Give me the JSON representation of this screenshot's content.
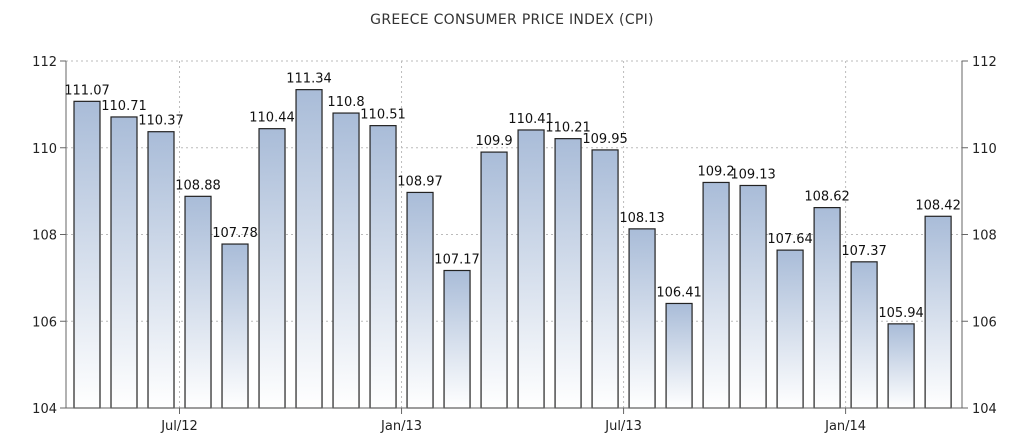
{
  "chart_data": {
    "type": "bar",
    "title": "GREECE CONSUMER PRICE INDEX (CPI)",
    "xlabel": "",
    "ylabel": "",
    "ylim": [
      104,
      112
    ],
    "yticks": [
      104,
      106,
      108,
      110,
      112
    ],
    "grid": true,
    "legend": "none",
    "x_tick_labels": [
      {
        "label": "Jul/12",
        "after_index": 2
      },
      {
        "label": "Jan/13",
        "after_index": 8
      },
      {
        "label": "Jul/13",
        "after_index": 14
      },
      {
        "label": "Jan/14",
        "after_index": 20
      }
    ],
    "values": [
      111.07,
      110.71,
      110.37,
      108.88,
      107.78,
      110.44,
      111.34,
      110.8,
      110.51,
      108.97,
      107.17,
      109.9,
      110.41,
      110.21,
      109.95,
      108.13,
      106.41,
      109.2,
      109.13,
      107.64,
      108.62,
      107.37,
      105.94,
      108.42
    ],
    "value_labels": [
      "111.07",
      "110.71",
      "110.37",
      "108.88",
      "107.78",
      "110.44",
      "111.34",
      "110.8",
      "110.51",
      "108.97",
      "107.17",
      "109.9",
      "110.41",
      "110.21",
      "109.95",
      "108.13",
      "106.41",
      "109.2",
      "109.13",
      "107.64",
      "108.62",
      "107.37",
      "105.94",
      "108.42"
    ],
    "colors": {
      "bar_top": "#a9bcd8",
      "bar_bottom": "#ffffff",
      "bar_stroke": "#222222",
      "grid": "#bbbbbb",
      "axis": "#666666"
    }
  }
}
